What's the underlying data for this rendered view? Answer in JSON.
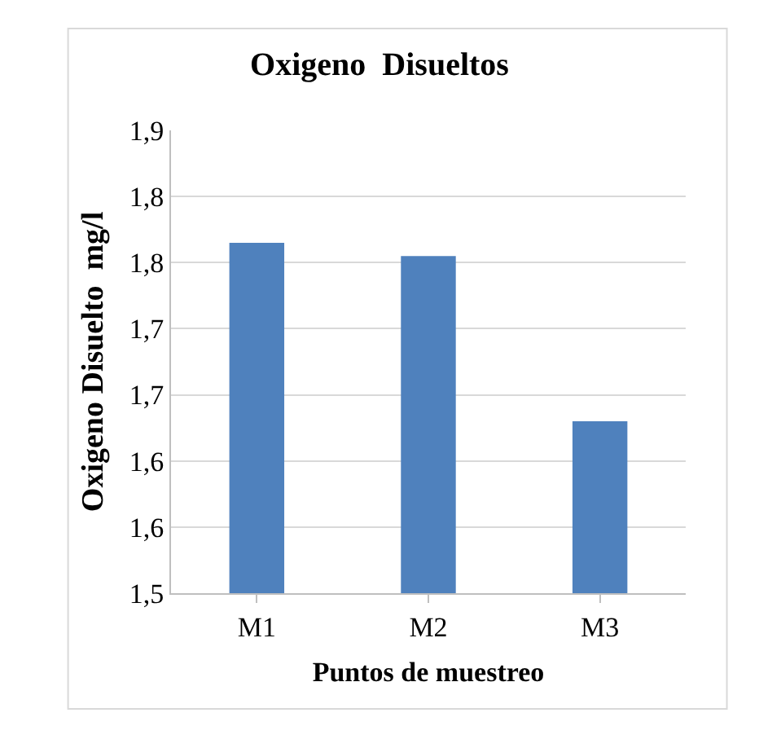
{
  "chart_data": {
    "type": "bar",
    "title": "Oxigeno  Disueltos",
    "xlabel": "Puntos de muestreo",
    "ylabel": "Oxigeno Disuelto  mg/l",
    "categories": [
      "M1",
      "M2",
      "M3"
    ],
    "values": [
      1.765,
      1.755,
      1.63
    ],
    "color": "#4f81bd",
    "ylim": [
      1.5,
      1.85
    ],
    "yticks": [
      {
        "value": 1.5,
        "label": "1,5"
      },
      {
        "value": 1.55,
        "label": "1,6"
      },
      {
        "value": 1.6,
        "label": "1,6"
      },
      {
        "value": 1.65,
        "label": "1,7"
      },
      {
        "value": 1.7,
        "label": "1,7"
      },
      {
        "value": 1.75,
        "label": "1,8"
      },
      {
        "value": 1.8,
        "label": "1,8"
      },
      {
        "value": 1.85,
        "label": "1,9"
      }
    ],
    "grid": "y",
    "legend": false
  }
}
